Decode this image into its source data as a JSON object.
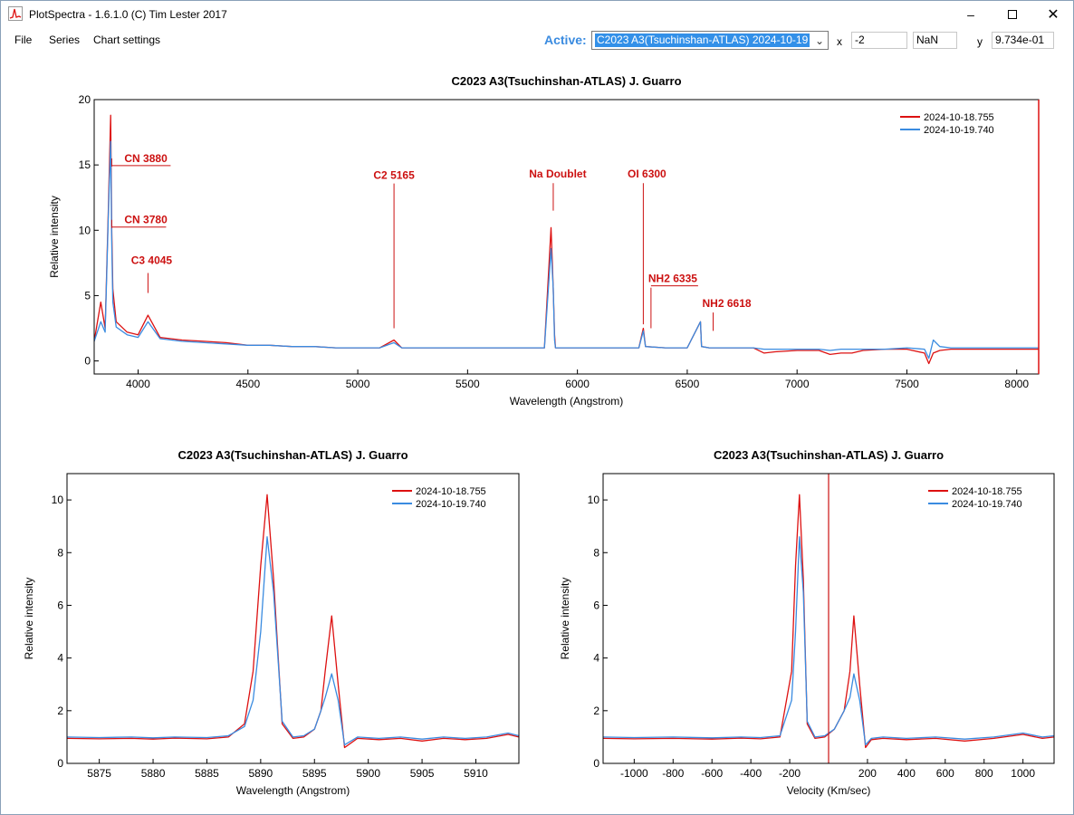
{
  "window": {
    "title": "PlotSpectra - 1.6.1.0 (C) Tim Lester 2017",
    "minimize_icon": "minimize-icon",
    "maximize_icon": "maximize-icon",
    "close_icon": "close-icon"
  },
  "menu": {
    "items": [
      "File",
      "Series",
      "Chart settings"
    ]
  },
  "toolbar": {
    "active_label": "Active:",
    "active_value": "C2023 A3(Tsuchinshan-ATLAS) 2024-10-19",
    "x_label": "x",
    "x_value": "-2",
    "nan_value": "NaN",
    "y_label": "y",
    "y_value": "9.734e-01"
  },
  "colors": {
    "series1": "#dd1111",
    "series2": "#3a8be0",
    "annotation": "#cc1111",
    "active": "#3a8be0"
  },
  "chart_data": [
    {
      "type": "line",
      "title": "C2023 A3(Tsuchinshan-ATLAS)  J. Guarro",
      "xlabel": "Wavelength (Angstrom)",
      "ylabel": "Relative intensity",
      "xlim": [
        3800,
        8100
      ],
      "ylim": [
        -1,
        20
      ],
      "xticks": [
        4000,
        4500,
        5000,
        5500,
        6000,
        6500,
        7000,
        7500,
        8000
      ],
      "yticks": [
        0,
        5,
        10,
        15,
        20
      ],
      "legend": "top-right",
      "series": [
        {
          "name": "2024-10-18.755",
          "x": [
            3800,
            3830,
            3850,
            3865,
            3875,
            3880,
            3885,
            3900,
            3950,
            4000,
            4045,
            4100,
            4200,
            4300,
            4400,
            4500,
            4600,
            4700,
            4800,
            4900,
            5000,
            5100,
            5165,
            5200,
            5300,
            5400,
            5500,
            5600,
            5700,
            5800,
            5850,
            5880,
            5890,
            5896,
            5900,
            5950,
            6000,
            6100,
            6200,
            6280,
            6300,
            6310,
            6400,
            6500,
            6560,
            6565,
            6600,
            6700,
            6800,
            6850,
            6900,
            7000,
            7100,
            7150,
            7200,
            7250,
            7300,
            7400,
            7500,
            7580,
            7600,
            7620,
            7650,
            7700,
            7800,
            7900,
            8000,
            8100
          ],
          "y": [
            1.5,
            4.5,
            2.5,
            12.0,
            18.8,
            10.0,
            5.5,
            3.0,
            2.2,
            2.0,
            3.5,
            1.8,
            1.6,
            1.5,
            1.4,
            1.2,
            1.2,
            1.1,
            1.1,
            1.0,
            1.0,
            1.0,
            1.6,
            1.0,
            1.0,
            1.0,
            1.0,
            1.0,
            1.0,
            1.0,
            1.0,
            10.2,
            5.6,
            2.0,
            1.0,
            1.0,
            1.0,
            1.0,
            1.0,
            1.0,
            2.5,
            1.1,
            1.0,
            1.0,
            3.0,
            1.1,
            1.0,
            1.0,
            1.0,
            0.6,
            0.7,
            0.8,
            0.8,
            0.5,
            0.6,
            0.6,
            0.8,
            0.9,
            0.9,
            0.6,
            -0.2,
            0.6,
            0.8,
            0.9,
            0.9,
            0.9,
            0.9,
            0.9
          ]
        },
        {
          "name": "2024-10-19.740",
          "x": [
            3800,
            3830,
            3850,
            3865,
            3875,
            3880,
            3885,
            3900,
            3950,
            4000,
            4045,
            4100,
            4200,
            4300,
            4400,
            4500,
            4600,
            4700,
            4800,
            4900,
            5000,
            5100,
            5165,
            5200,
            5300,
            5400,
            5500,
            5600,
            5700,
            5800,
            5850,
            5880,
            5890,
            5896,
            5900,
            5950,
            6000,
            6100,
            6200,
            6280,
            6300,
            6310,
            6400,
            6500,
            6560,
            6565,
            6600,
            6700,
            6800,
            6850,
            6900,
            7000,
            7100,
            7150,
            7200,
            7250,
            7300,
            7400,
            7500,
            7580,
            7600,
            7620,
            7650,
            7700,
            7800,
            7900,
            8000,
            8100
          ],
          "y": [
            1.5,
            3.0,
            2.2,
            11.5,
            16.8,
            9.0,
            4.5,
            2.6,
            2.0,
            1.8,
            3.0,
            1.7,
            1.5,
            1.4,
            1.3,
            1.2,
            1.2,
            1.1,
            1.1,
            1.0,
            1.0,
            1.0,
            1.4,
            1.0,
            1.0,
            1.0,
            1.0,
            1.0,
            1.0,
            1.0,
            1.0,
            8.6,
            5.6,
            1.6,
            1.0,
            1.0,
            1.0,
            1.0,
            1.0,
            1.0,
            2.3,
            1.1,
            1.0,
            1.0,
            3.0,
            1.1,
            1.0,
            1.0,
            1.0,
            0.9,
            0.9,
            0.9,
            0.9,
            0.8,
            0.9,
            0.9,
            0.9,
            0.9,
            1.0,
            0.9,
            0.2,
            1.6,
            1.1,
            1.0,
            1.0,
            1.0,
            1.0,
            1.0
          ]
        }
      ],
      "annotations": [
        {
          "text": "CN 3880",
          "x": 3880,
          "y": 15.5
        },
        {
          "text": "CN 3780",
          "x": 3880,
          "y": 10.8
        },
        {
          "text": "C3 4045",
          "x": 4045,
          "y": 7.7
        },
        {
          "text": "C2 5165",
          "x": 5165,
          "y": 14.2
        },
        {
          "text": "Na Doublet",
          "x": 5890,
          "y": 14.3
        },
        {
          "text": "OI 6300",
          "x": 6300,
          "y": 14.3
        },
        {
          "text": "NH2 6335",
          "x": 6335,
          "y": 6.3
        },
        {
          "text": "NH2  6618",
          "x": 6618,
          "y": 4.4
        }
      ]
    },
    {
      "type": "line",
      "title": "C2023 A3(Tsuchinshan-ATLAS)  J. Guarro",
      "xlabel": "Wavelength (Angstrom)",
      "ylabel": "Relative intensity",
      "xlim": [
        5872,
        5914
      ],
      "ylim": [
        0,
        11
      ],
      "xticks": [
        5875,
        5880,
        5885,
        5890,
        5895,
        5900,
        5905,
        5910
      ],
      "yticks": [
        0,
        2,
        4,
        6,
        8,
        10
      ],
      "legend": "top-right",
      "series": [
        {
          "name": "2024-10-18.755",
          "x": [
            5872,
            5875,
            5878,
            5880,
            5882,
            5885,
            5887,
            5888.5,
            5889.3,
            5890,
            5890.6,
            5891.2,
            5892,
            5893,
            5894,
            5895,
            5895.6,
            5896,
            5896.6,
            5897.2,
            5897.8,
            5899,
            5901,
            5903,
            5905,
            5907,
            5909,
            5911,
            5913,
            5914
          ],
          "y": [
            0.95,
            0.93,
            0.95,
            0.92,
            0.96,
            0.93,
            1.0,
            1.5,
            3.5,
            7.5,
            10.2,
            7.0,
            1.5,
            0.95,
            1.0,
            1.3,
            2.0,
            3.5,
            5.6,
            3.0,
            0.6,
            0.95,
            0.9,
            0.95,
            0.85,
            0.95,
            0.9,
            0.95,
            1.1,
            1.0
          ]
        },
        {
          "name": "2024-10-19.740",
          "x": [
            5872,
            5875,
            5878,
            5880,
            5882,
            5885,
            5887,
            5888.5,
            5889.3,
            5890,
            5890.6,
            5891.2,
            5892,
            5893,
            5894,
            5895,
            5895.6,
            5896,
            5896.6,
            5897.2,
            5897.8,
            5899,
            5901,
            5903,
            5905,
            5907,
            5909,
            5911,
            5913,
            5914
          ],
          "y": [
            1.0,
            0.98,
            1.0,
            0.97,
            1.0,
            0.98,
            1.05,
            1.4,
            2.4,
            5.0,
            8.6,
            6.5,
            1.6,
            1.0,
            1.05,
            1.3,
            2.0,
            2.5,
            3.4,
            2.4,
            0.7,
            1.0,
            0.95,
            1.0,
            0.92,
            1.0,
            0.95,
            1.0,
            1.15,
            1.05
          ]
        }
      ]
    },
    {
      "type": "line",
      "title": "C2023 A3(Tsuchinshan-ATLAS)  J. Guarro",
      "xlabel": "Velocity (Km/sec)",
      "ylabel": "Relative intensity",
      "xlim": [
        -1160,
        1160
      ],
      "ylim": [
        0,
        11
      ],
      "xticks": [
        -1000,
        -800,
        -600,
        -400,
        -200,
        200,
        400,
        600,
        800,
        1000
      ],
      "yticks": [
        0,
        2,
        4,
        6,
        8,
        10
      ],
      "legend": "top-right",
      "marker_x": 0,
      "series": [
        {
          "name": "2024-10-18.755",
          "x": [
            -1160,
            -1000,
            -800,
            -600,
            -450,
            -350,
            -250,
            -190,
            -170,
            -150,
            -130,
            -110,
            -70,
            -20,
            30,
            80,
            110,
            130,
            160,
            190,
            220,
            280,
            400,
            550,
            700,
            850,
            1000,
            1100,
            1160
          ],
          "y": [
            0.95,
            0.93,
            0.95,
            0.92,
            0.96,
            0.93,
            1.0,
            3.5,
            7.5,
            10.2,
            7.0,
            1.5,
            0.95,
            1.0,
            1.3,
            2.0,
            3.5,
            5.6,
            3.0,
            0.6,
            0.9,
            0.95,
            0.9,
            0.95,
            0.85,
            0.95,
            1.1,
            0.95,
            1.0
          ]
        },
        {
          "name": "2024-10-19.740",
          "x": [
            -1160,
            -1000,
            -800,
            -600,
            -450,
            -350,
            -250,
            -190,
            -170,
            -150,
            -130,
            -110,
            -70,
            -20,
            30,
            80,
            110,
            130,
            160,
            190,
            220,
            280,
            400,
            550,
            700,
            850,
            1000,
            1100,
            1160
          ],
          "y": [
            1.0,
            0.98,
            1.0,
            0.97,
            1.0,
            0.98,
            1.05,
            2.4,
            5.0,
            8.6,
            6.5,
            1.6,
            1.0,
            1.05,
            1.3,
            2.0,
            2.5,
            3.4,
            2.4,
            0.7,
            0.95,
            1.0,
            0.95,
            1.0,
            0.92,
            1.0,
            1.15,
            1.0,
            1.05
          ]
        }
      ]
    }
  ]
}
